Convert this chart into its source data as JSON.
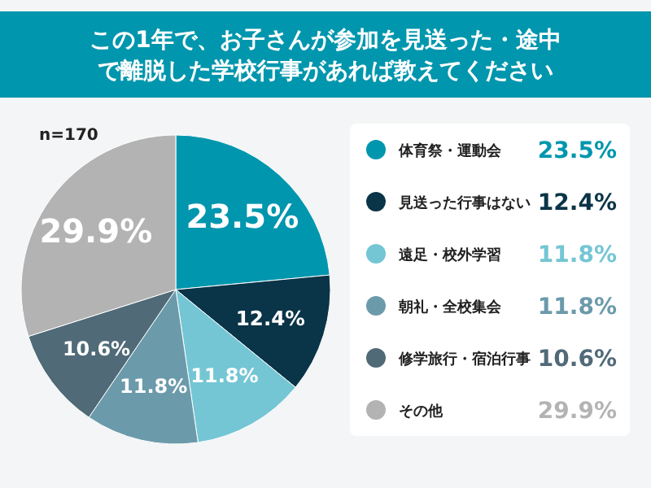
{
  "chart_data": {
    "type": "pie",
    "title": "この1年で、お子さんが参加を見送った・途中で離脱した学校行事があれば教えてください",
    "categories": [
      "体育祭・運動会",
      "見送った行事はない",
      "遠足・校外学習",
      "朝礼・全校集会",
      "修学旅行・宿泊行事",
      "その他"
    ],
    "values": [
      23.5,
      12.4,
      11.8,
      11.8,
      10.6,
      29.9
    ],
    "colors": [
      "#0096ae",
      "#0a3447",
      "#74c6d4",
      "#6b9aab",
      "#506a78",
      "#b3b3b3"
    ],
    "value_labels": [
      "23.5%",
      "12.4%",
      "11.8%",
      "11.8%",
      "10.6%",
      "29.9%"
    ],
    "legend": "right",
    "annotations": [
      "n=170"
    ]
  }
}
